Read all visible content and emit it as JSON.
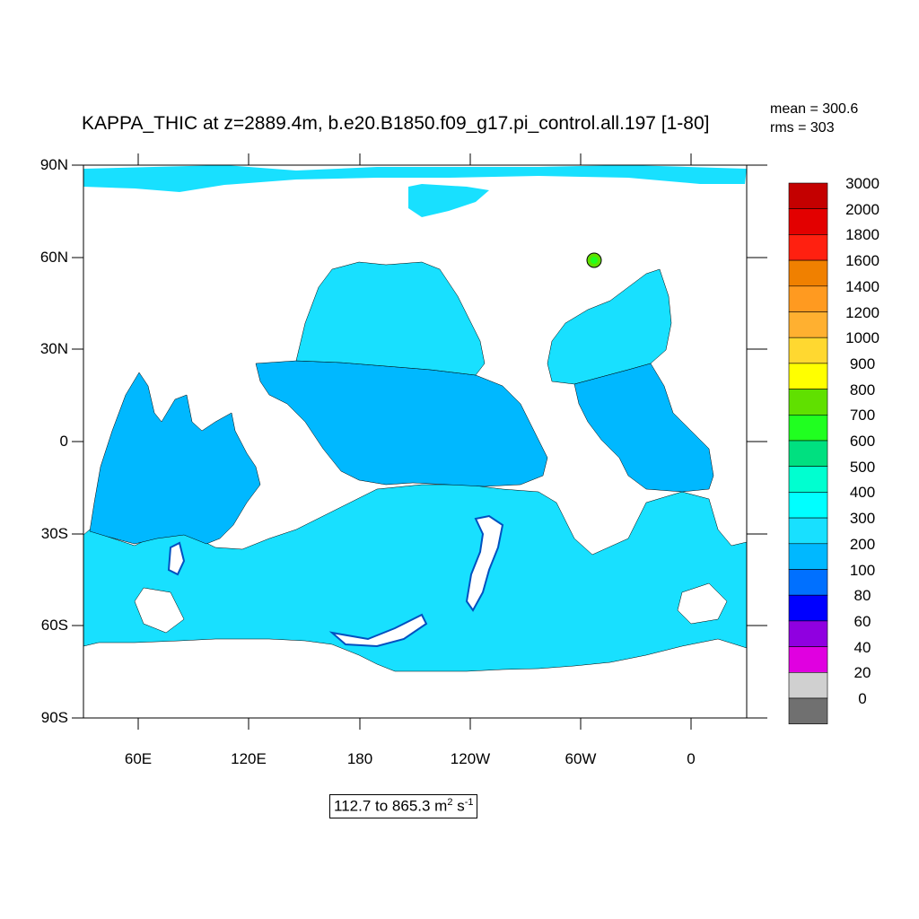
{
  "title": "KAPPA_THIC at z=2889.4m, b.e20.B1850.f09_g17.pi_control.all.197 [1-80]",
  "stats": {
    "mean": "mean = 300.6",
    "rms": "rms = 303"
  },
  "y_axis": {
    "ticks": [
      "90N",
      "60N",
      "30N",
      "0",
      "30S",
      "60S",
      "90S"
    ]
  },
  "x_axis": {
    "ticks": [
      "60E",
      "120E",
      "180",
      "120W",
      "60W",
      "0"
    ]
  },
  "range": {
    "text": "112.7 to 865.3 m",
    "sup1": "2",
    "unit_tail": " s",
    "sup2": "-1"
  },
  "colorbar": {
    "levels": [
      "3000",
      "2000",
      "1800",
      "1600",
      "1400",
      "1200",
      "1000",
      "900",
      "800",
      "700",
      "600",
      "500",
      "400",
      "300",
      "200",
      "100",
      "80",
      "60",
      "40",
      "20",
      "0"
    ],
    "colors": [
      "#c40000",
      "#e30000",
      "#ff2010",
      "#f08000",
      "#ff9a20",
      "#ffb030",
      "#ffd830",
      "#ffff00",
      "#60e000",
      "#20ff20",
      "#00e080",
      "#00ffd0",
      "#00ffff",
      "#18e0ff",
      "#00b8ff",
      "#0070ff",
      "#0000ff",
      "#9000e0",
      "#e000e0",
      "#d0d0d0",
      "#707070"
    ]
  },
  "chart_data": {
    "type": "heatmap",
    "variable": "KAPPA_THIC",
    "depth": "z=2889.4m",
    "case": "b.e20.B1850.f09_g17.pi_control.all.197",
    "years": "[1-80]",
    "mean": 300.6,
    "rms": 303,
    "min": 112.7,
    "max": 865.3,
    "units": "m2 s-1",
    "lat_range": [
      -90,
      90
    ],
    "lon_ticks": [
      "60E",
      "120E",
      "180",
      "120W",
      "60W",
      "0"
    ],
    "contour_levels": [
      0,
      20,
      40,
      60,
      80,
      100,
      200,
      300,
      400,
      500,
      600,
      700,
      800,
      900,
      1000,
      1200,
      1400,
      1600,
      1800,
      2000,
      3000
    ]
  }
}
